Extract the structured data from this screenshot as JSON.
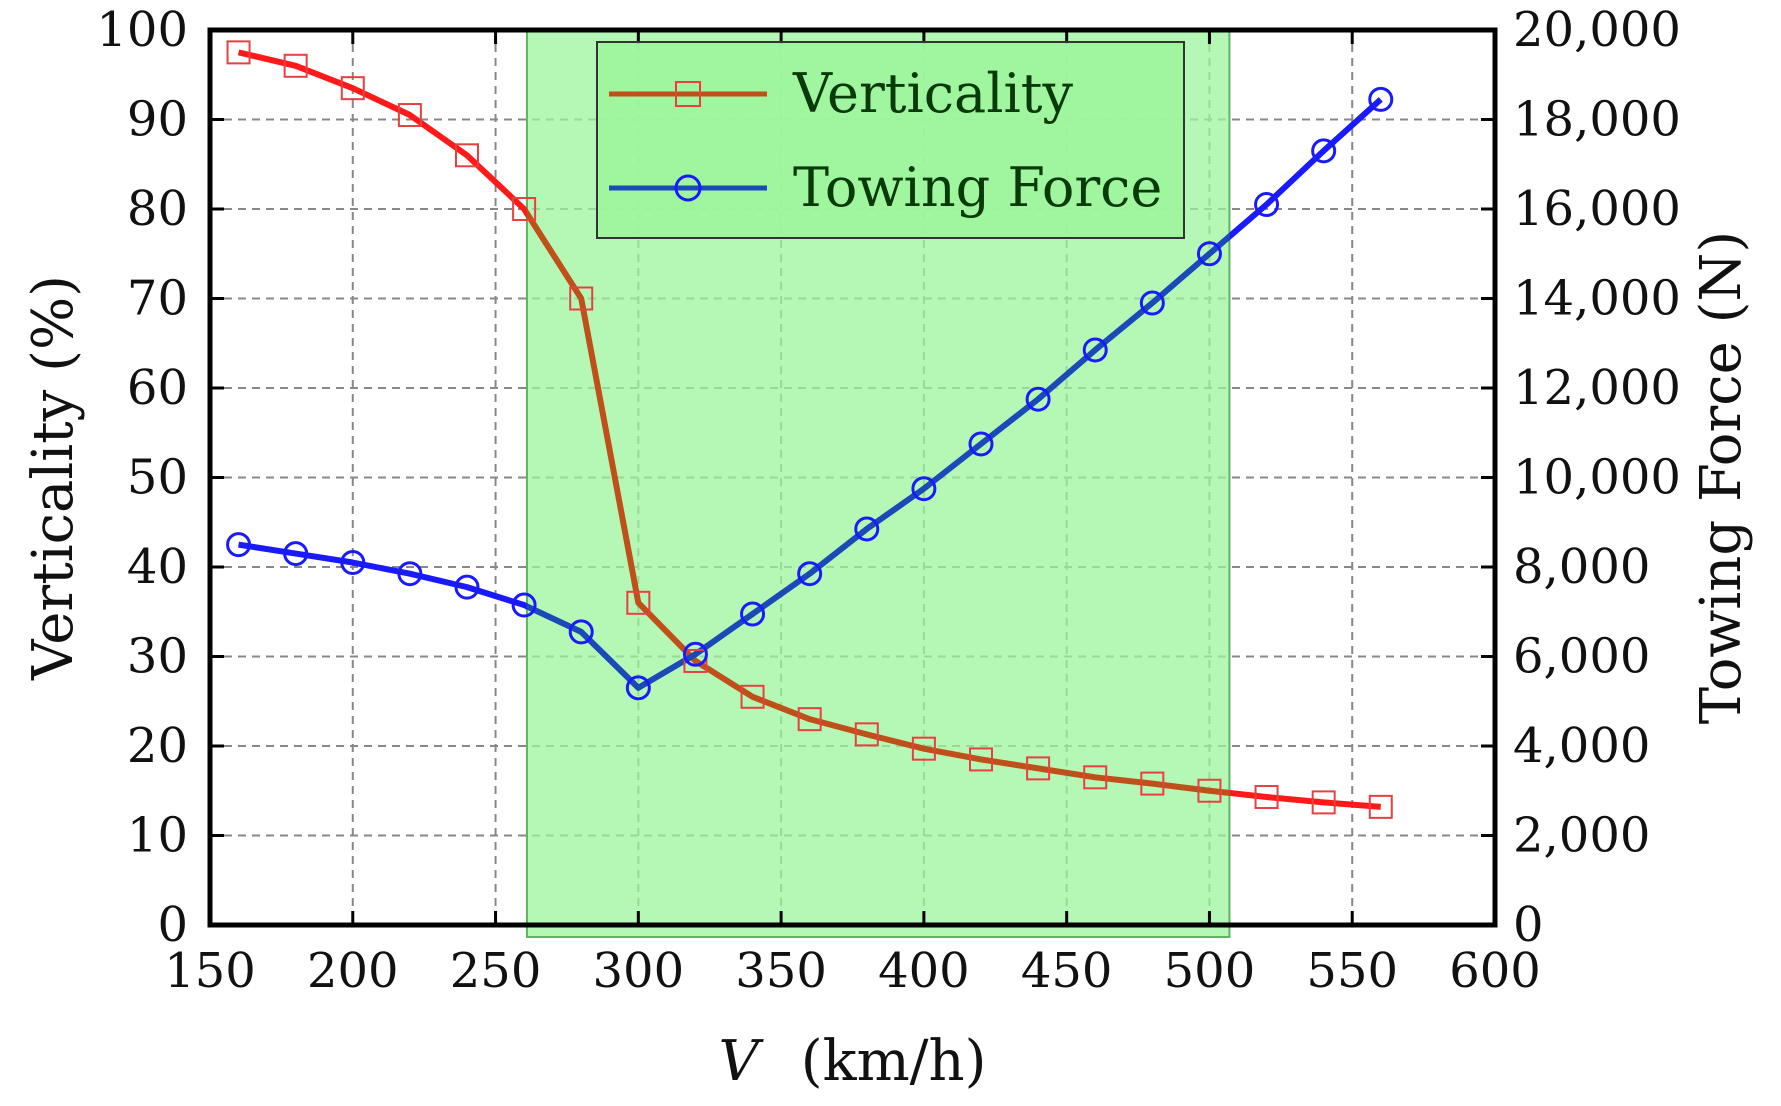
{
  "chart_data": {
    "type": "line",
    "title": "",
    "xlabel_var": "V",
    "xlabel_unit": "(km/h)",
    "ylabel_left": "Verticality (%)",
    "ylabel_right": "Towing Force (N)",
    "xlim": [
      150,
      600
    ],
    "ylim_left": [
      0,
      100
    ],
    "ylim_right": [
      0,
      20000
    ],
    "x_ticks": [
      "150",
      "200",
      "250",
      "300",
      "350",
      "400",
      "450",
      "500",
      "550",
      "600"
    ],
    "y_left_ticks": [
      "0",
      "10",
      "20",
      "30",
      "40",
      "50",
      "60",
      "70",
      "80",
      "90",
      "100"
    ],
    "y_right_ticks": [
      "0",
      "2,000",
      "4,000",
      "6,000",
      "8,000",
      "10,000",
      "12,000",
      "14,000",
      "16,000",
      "18,000",
      "20,000"
    ],
    "grid": true,
    "legend_position": "top-center",
    "highlight_band": {
      "x_start": 261,
      "x_end": 507,
      "color": "#9cf59c"
    },
    "x": [
      160,
      180,
      200,
      220,
      240,
      260,
      280,
      300,
      320,
      340,
      360,
      380,
      400,
      420,
      440,
      460,
      480,
      500,
      520,
      540,
      560
    ],
    "series": [
      {
        "name": "Verticality",
        "axis": "left",
        "line_color": "#ff1a1a",
        "in_band_color": "#c0501a",
        "marker": "square",
        "marker_color": "#e84040",
        "values": [
          97.5,
          96,
          93.5,
          90.5,
          86,
          80,
          70,
          36,
          29.5,
          25.5,
          23,
          21.3,
          19.7,
          18.5,
          17.5,
          16.5,
          15.8,
          15,
          14.3,
          13.7,
          13.2
        ]
      },
      {
        "name": "Towing Force",
        "axis": "right",
        "line_color": "#1a1aff",
        "in_band_color": "#1a4ab8",
        "marker": "circle",
        "marker_color": "#1a1aff",
        "values": [
          8500,
          8300,
          8100,
          7850,
          7550,
          7150,
          6550,
          5300,
          6050,
          6950,
          7850,
          8850,
          9750,
          10750,
          11750,
          12850,
          13900,
          15000,
          16100,
          17300,
          18450
        ]
      }
    ]
  }
}
